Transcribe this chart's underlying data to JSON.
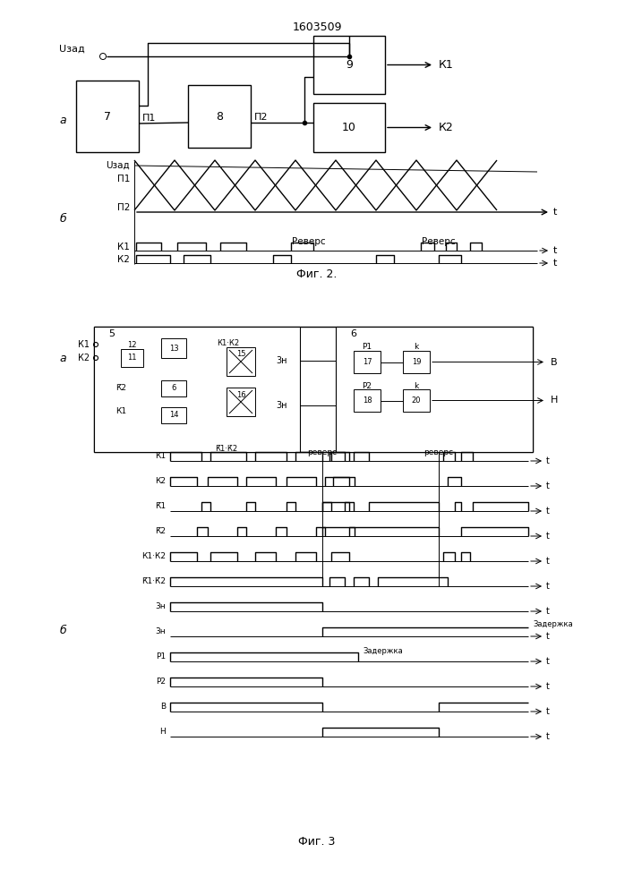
{
  "title": "1603509",
  "fig2_caption": "Фиг. 2.",
  "fig3_caption": "Фиг. 3",
  "bg": "white"
}
